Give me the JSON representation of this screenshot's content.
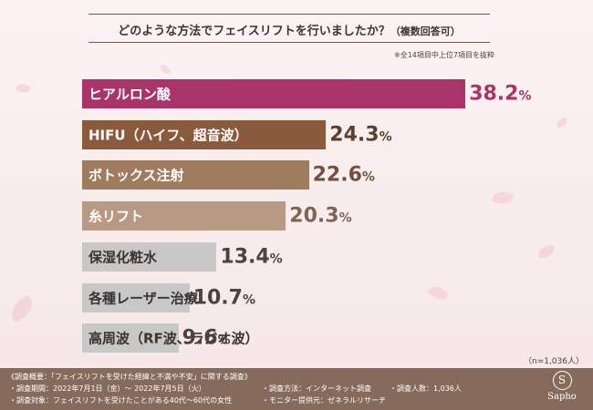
{
  "header": {
    "title": "どのような方法でフェイスリフトを行いましたか？",
    "title_suffix": "（複数回答可）",
    "note": "※全14項目中上位7項目を抜粋"
  },
  "chart_data": {
    "type": "bar",
    "orientation": "horizontal",
    "categories": [
      "ヒアルロン酸",
      "HIFU（ハイフ、超音波）",
      "ボトックス注射",
      "糸リフト",
      "保湿化粧水",
      "各種レーザー治療",
      "高周波（RF波、ラジオ波）"
    ],
    "values": [
      38.2,
      24.3,
      22.6,
      20.3,
      13.4,
      10.7,
      9.6
    ],
    "unit": "%",
    "sample_size": "（n=1,036人）",
    "colors": {
      "bars": [
        "#a8346a",
        "#8a5a3c",
        "#a07c5e",
        "#b89a84",
        "#c8c8c8",
        "#c8c8c8",
        "#c8c8c8"
      ],
      "labels": [
        "#ffffff",
        "#ffffff",
        "#ffffff",
        "#ffffff",
        "#3a3330",
        "#3a3330",
        "#3a3330"
      ],
      "values": [
        "#a8346a",
        "#5a3e2e",
        "#6e5240",
        "#7e6554",
        "#4a4340",
        "#4a4340",
        "#4a4340"
      ]
    }
  },
  "footer": {
    "survey_title": "《調査概要：「フェイスリフトを受けた経緯と不満や不安」に関する調査》",
    "period": "・調査期間：2022年7月1日（金）～ 2022年7月5日（火）",
    "target": "・調査対象：フェイスリフトを受けたことがある40代～60代の女性",
    "method": "・調査方法：インターネット調査",
    "provider": "・モニター提供元：ゼネラルリサーチ",
    "count": "・調査人数：1,036人",
    "logo_mark": "S",
    "logo_text": "Sapho"
  }
}
